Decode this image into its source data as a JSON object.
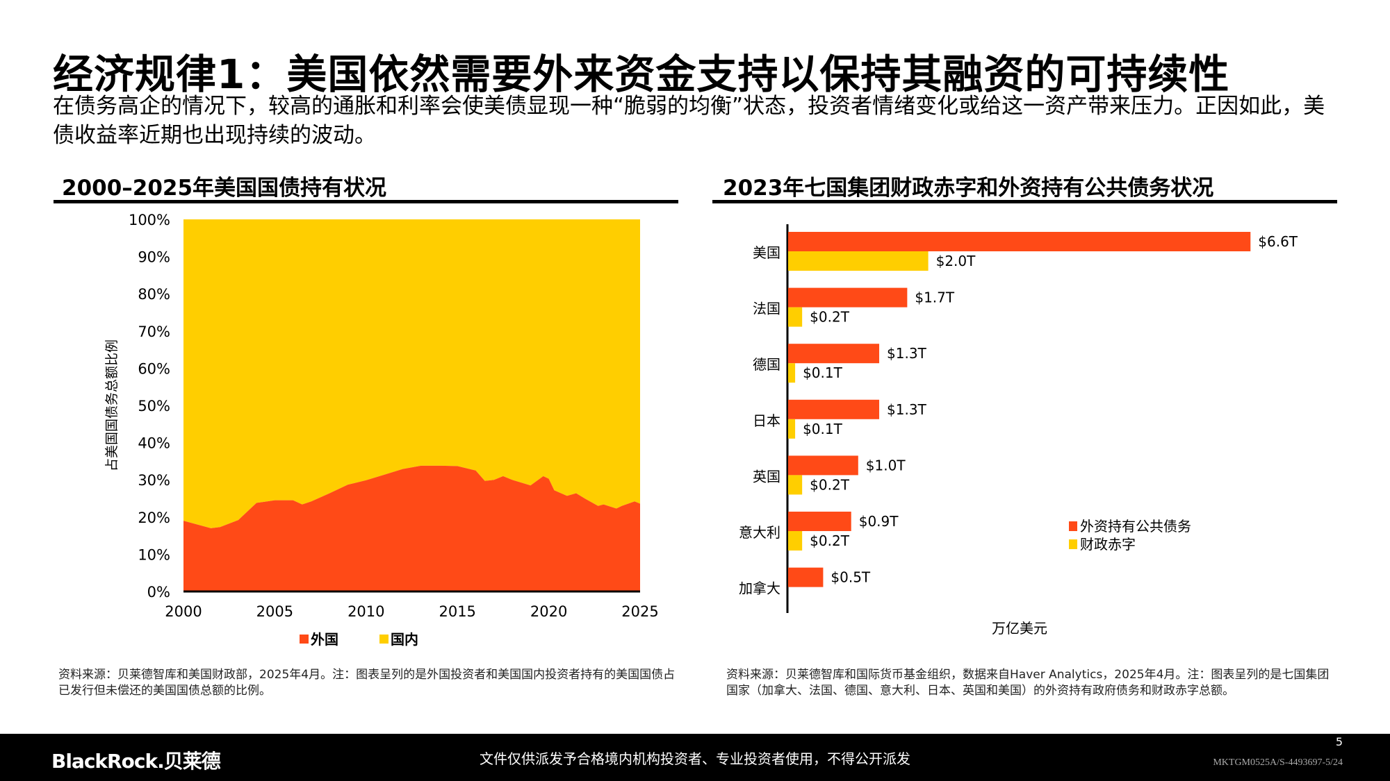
{
  "title": "经济规律1：美国依然需要外来资金支持以保持其融资的可持续性",
  "subtitle": "在债务高企的情况下，较高的通胀和利率会使美债显现一种“脆弱的均衡”状态，投资者情绪变化或给这一资产带来压力。正因如此，美债收益率近期也出现持续的波动。",
  "colors": {
    "orange": "#FF4A17",
    "yellow": "#FFCE00",
    "black": "#000000"
  },
  "chart_data": [
    {
      "type": "area",
      "title": "2000–2025年美国国债持有状况",
      "xlabel": "",
      "ylabel": "占美国国债务总额比例",
      "xlim": [
        2000,
        2025
      ],
      "ylim": [
        0,
        100
      ],
      "x_ticks": [
        "2000",
        "2005",
        "2010",
        "2015",
        "2020",
        "2025"
      ],
      "y_ticks": [
        "0%",
        "10%",
        "20%",
        "30%",
        "40%",
        "50%",
        "60%",
        "70%",
        "80%",
        "90%",
        "100%"
      ],
      "stacked": true,
      "legend": "bottom",
      "x": [
        2000,
        2001.5,
        2002,
        2003,
        2004,
        2005,
        2006,
        2006.5,
        2007,
        2008,
        2009,
        2010,
        2011,
        2012,
        2013,
        2014,
        2015,
        2016,
        2016.5,
        2017,
        2017.5,
        2018,
        2019,
        2019.7,
        2020,
        2020.3,
        2021,
        2021.5,
        2022,
        2022.7,
        2023,
        2023.7,
        2024,
        2024.7,
        2025
      ],
      "series": [
        {
          "name": "外国",
          "color": "#FF4A17",
          "values": [
            19,
            17,
            17.3,
            19.2,
            23.8,
            24.5,
            24.5,
            23.4,
            24.2,
            26.4,
            28.7,
            29.9,
            31.4,
            32.9,
            33.8,
            33.8,
            33.7,
            32.5,
            29.7,
            30,
            31,
            30,
            28.5,
            31,
            30.3,
            27.2,
            25.7,
            26.4,
            24.9,
            23,
            23.4,
            22.3,
            23,
            24.2,
            23.6
          ]
        },
        {
          "name": "国内",
          "color": "#FFCE00",
          "values": [
            81,
            83,
            82.7,
            80.8,
            76.2,
            75.5,
            75.5,
            76.6,
            75.8,
            73.6,
            71.3,
            70.1,
            68.6,
            67.1,
            66.2,
            66.2,
            66.3,
            67.5,
            70.3,
            70,
            69,
            70,
            71.5,
            69,
            69.7,
            72.8,
            74.3,
            73.6,
            75.1,
            77,
            76.6,
            77.7,
            77,
            75.8,
            76.4
          ]
        }
      ],
      "note": "资料来源：贝莱德智库和美国财政部，2025年4月。注：图表呈列的是外国投资者和美国国内投资者持有的美国国债占已发行但未偿还的美国国债总额的比例。"
    },
    {
      "type": "bar",
      "orientation": "horizontal",
      "title": "2023年七国集团财政赤字和外资持有公共债务状况",
      "xlabel": "万亿美元",
      "categories": [
        "美国",
        "法国",
        "德国",
        "日本",
        "英国",
        "意大利",
        "加拿大"
      ],
      "legend": "right",
      "series": [
        {
          "name": "外资持有公共债务",
          "color": "#FF4A17",
          "values": [
            6.6,
            1.7,
            1.3,
            1.3,
            1.0,
            0.9,
            0.5
          ],
          "labels": [
            "$6.6T",
            "$1.7T",
            "$1.3T",
            "$1.3T",
            "$1.0T",
            "$0.9T",
            "$0.5T"
          ]
        },
        {
          "name": "财政赤字",
          "color": "#FFCE00",
          "values": [
            2.0,
            0.2,
            0.1,
            0.1,
            0.2,
            0.2,
            null
          ],
          "labels": [
            "$2.0T",
            "$0.2T",
            "$0.1T",
            "$0.1T",
            "$0.2T",
            "$0.2T",
            null
          ]
        }
      ],
      "note": "资料来源：贝莱德智库和国际货币基金组织，数据来自Haver Analytics，2025年4月。注：图表呈列的是七国集团国家（加拿大、法国、德国、意大利、日本、英国和美国）的外资持有政府债务和财政赤字总额。"
    }
  ],
  "footer": {
    "logo": "BlackRock.贝莱德",
    "disclaimer": "文件仅供派发予合格境内机构投资者、专业投资者使用，不得公开派发",
    "page": "5",
    "code": "MKTGM0525A/S-4493697-5/24"
  }
}
